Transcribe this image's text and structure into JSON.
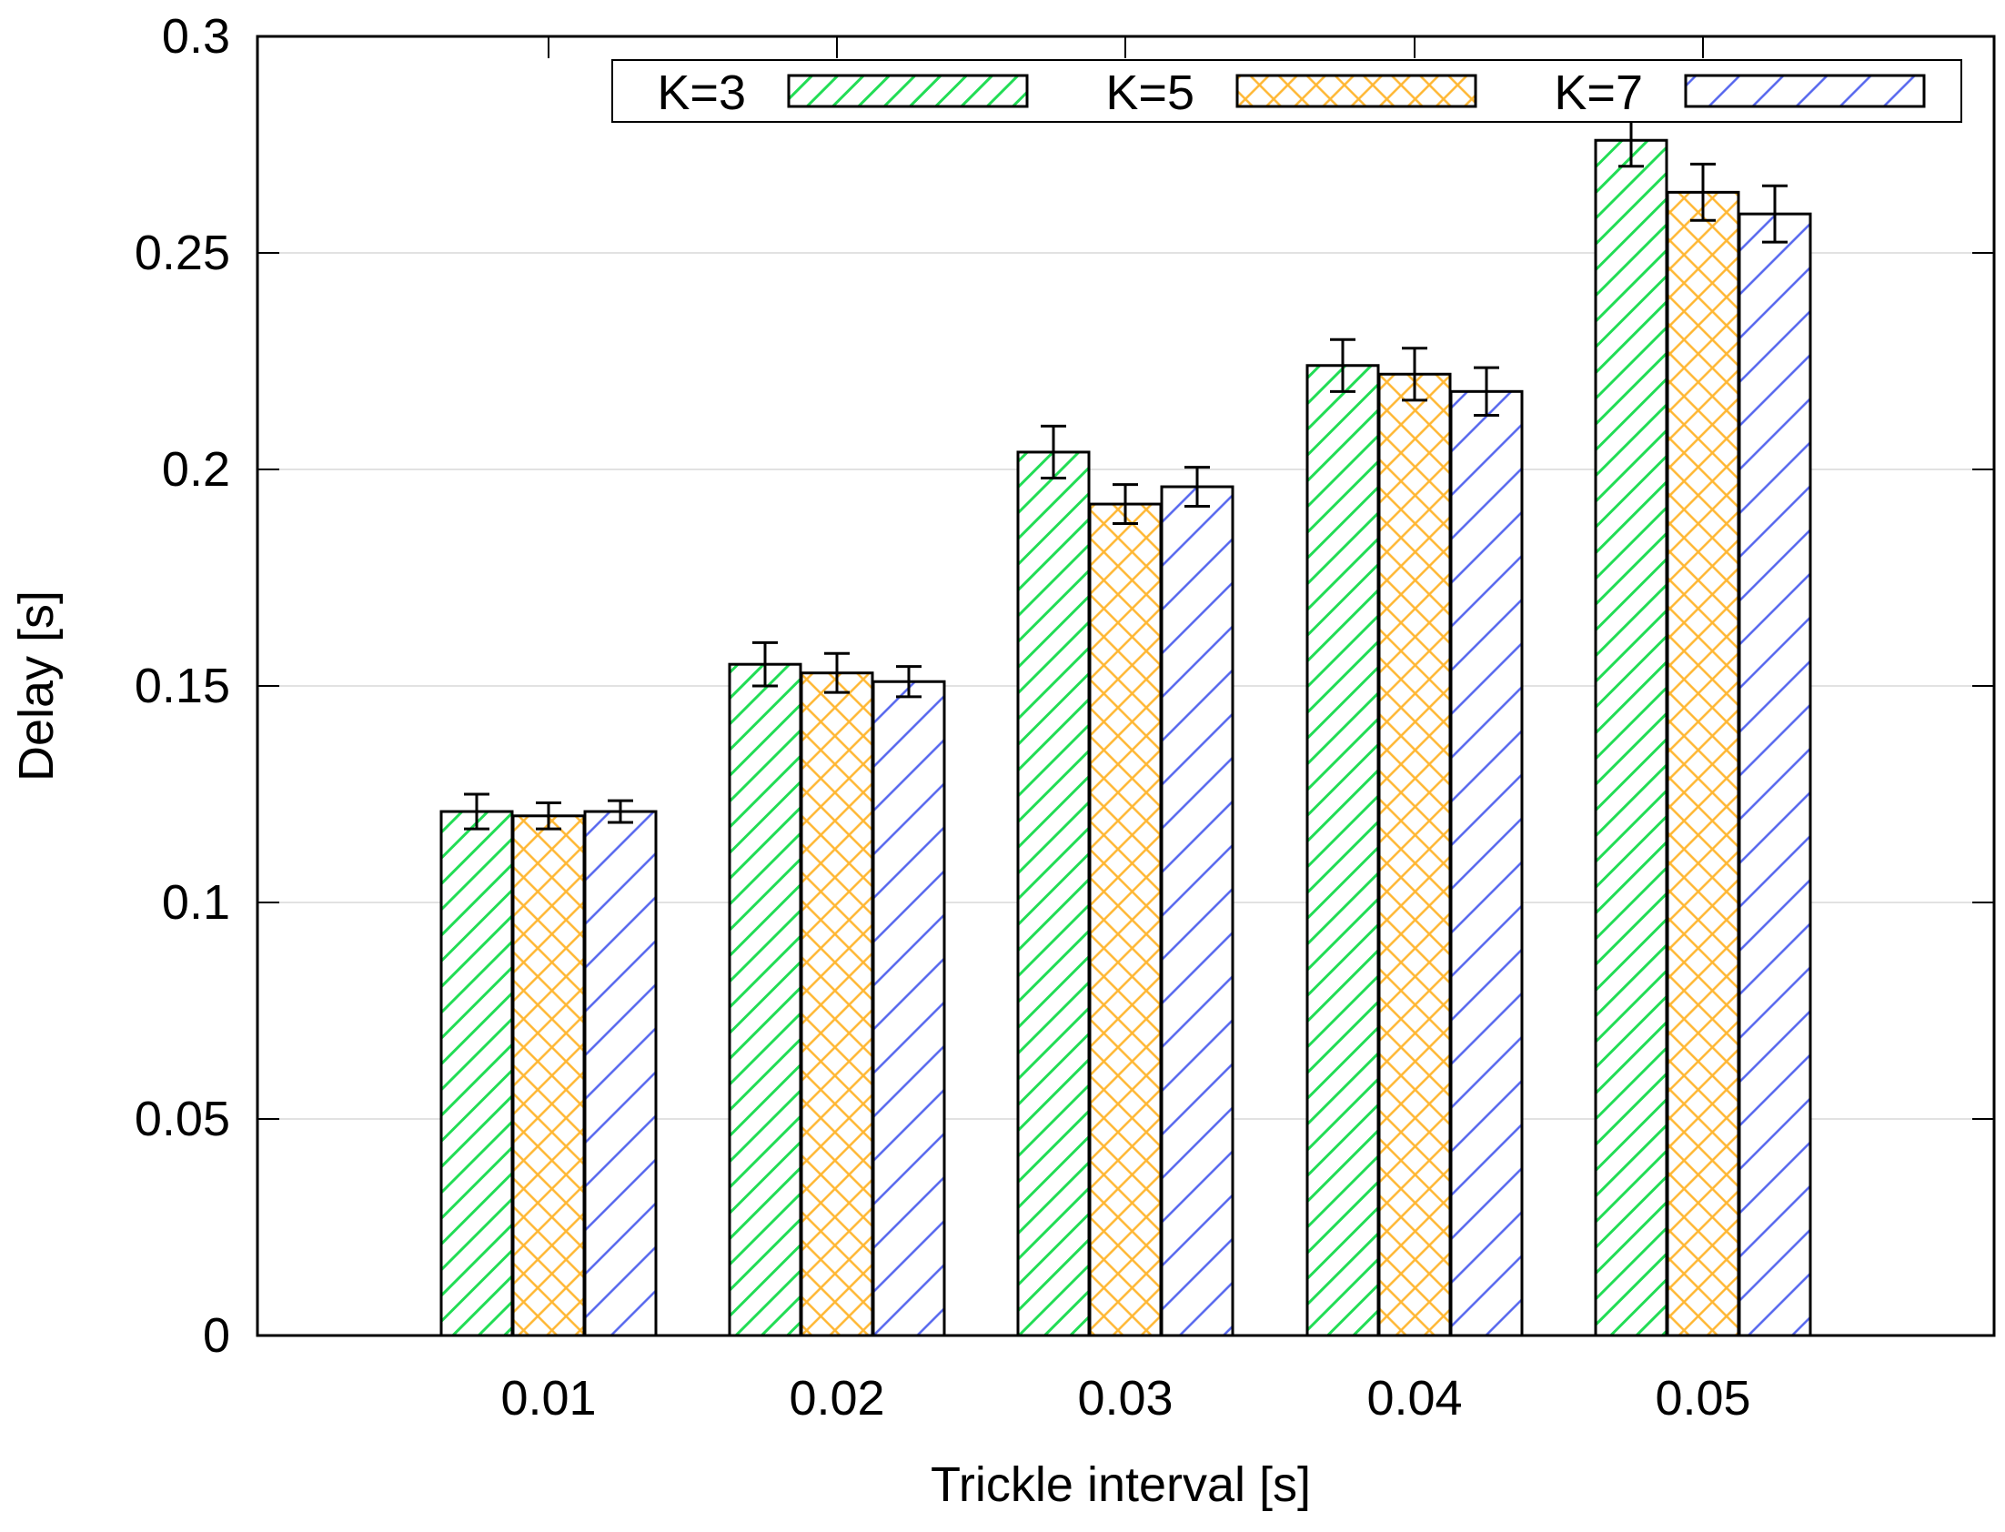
{
  "chart_data": {
    "type": "bar",
    "title": "",
    "xlabel": "Trickle interval [s]",
    "ylabel": "Delay [s]",
    "ylim": [
      0,
      0.3
    ],
    "yticks": [
      "0",
      "0.05",
      "0.1",
      "0.15",
      "0.2",
      "0.25",
      "0.3"
    ],
    "ytick_values": [
      0,
      0.05,
      0.1,
      0.15,
      0.2,
      0.25,
      0.3
    ],
    "categories": [
      "0.01",
      "0.02",
      "0.03",
      "0.04",
      "0.05"
    ],
    "grid": "horizontal",
    "legend_position": "top-right",
    "series": [
      {
        "name": "K=3",
        "color": "#22dd55",
        "pattern": "diagonal-down",
        "values": [
          0.121,
          0.155,
          0.204,
          0.224,
          0.276
        ],
        "errors": [
          0.004,
          0.005,
          0.006,
          0.006,
          0.006
        ]
      },
      {
        "name": "K=5",
        "color": "#ffb733",
        "pattern": "crosshatch",
        "values": [
          0.12,
          0.153,
          0.192,
          0.222,
          0.264
        ],
        "errors": [
          0.003,
          0.0045,
          0.0045,
          0.006,
          0.0065
        ]
      },
      {
        "name": "K=7",
        "color": "#5566ee",
        "pattern": "diagonal-down-sparse",
        "values": [
          0.121,
          0.151,
          0.196,
          0.218,
          0.259
        ],
        "errors": [
          0.0025,
          0.0035,
          0.0045,
          0.0055,
          0.0065
        ]
      }
    ]
  }
}
